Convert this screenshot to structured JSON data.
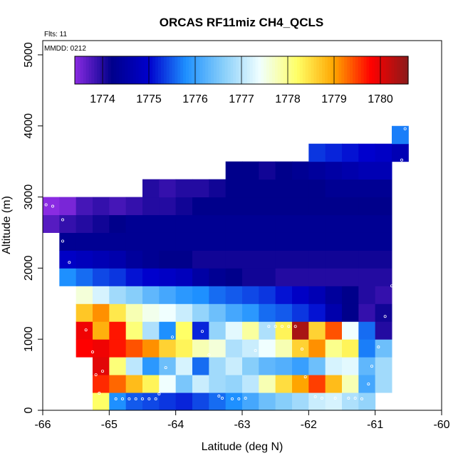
{
  "chart_data": {
    "type": "heatmap",
    "title": "ORCAS RF11miz CH4_QCLS",
    "annotations": {
      "flights": "Flts: 11",
      "date": "MMDD: 0212"
    },
    "xlabel": "Latitude (deg N)",
    "ylabel": "Altitude (m)",
    "xlim": [
      -66,
      -60
    ],
    "ylim": [
      0,
      5200
    ],
    "x_ticks": [
      -66,
      -65,
      -64,
      -63,
      -62,
      -61,
      -60
    ],
    "y_ticks": [
      0,
      1000,
      2000,
      3000,
      4000,
      5000
    ],
    "cell_width_deg": 0.25,
    "cell_height_m": 250,
    "colorbar": {
      "range": [
        1773.4,
        1780.6
      ],
      "ticks": [
        1774,
        1775,
        1776,
        1777,
        1778,
        1779,
        1780
      ],
      "colors": [
        "#8A2BE2",
        "#00008B",
        "#0000CD",
        "#1E90FF",
        "#87CEFA",
        "#F0FFFF",
        "#FFFF66",
        "#FFA500",
        "#FF0000",
        "#8B1A1A"
      ]
    },
    "rows": [
      {
        "alt": 0,
        "x0": -65.25,
        "values": [
          1778.2,
          1775.8,
          1775.5,
          1775.4,
          1775.3,
          1775.2,
          1775.4,
          1775.6,
          1775.8,
          1776.1,
          1776.4,
          1776.6,
          1776.8,
          1777.1,
          1777.2,
          1776.9,
          1776.7
        ]
      },
      {
        "alt": 250,
        "x0": -65.25,
        "values": [
          1779.6,
          1779.3,
          1778.8,
          1778.3,
          1777.4,
          1776.5,
          1777.1,
          1776.8,
          1776.7,
          1777.0,
          1777.8,
          1778.5,
          1779.0,
          1779.5,
          1778.8,
          1777.8,
          1776.1,
          1776.8
        ]
      },
      {
        "alt": 500,
        "x0": -65.25,
        "values": [
          1780.0,
          1778.1,
          1777.0,
          1775.9,
          1776.4,
          1777.2,
          1775.6,
          1776.8,
          1777.1,
          1776.6,
          1776.3,
          1776.2,
          1776.0,
          1776.4,
          1777.2,
          1777.3,
          1776.3,
          1776.8
        ]
      },
      {
        "alt": 750,
        "x0": -65.5,
        "values": [
          1779.8,
          1779.9,
          1779.7,
          1779.4,
          1779.1,
          1778.6,
          1778.3,
          1777.8,
          1777.6,
          1776.9,
          1777.1,
          1777.4,
          1777.8,
          1778.6,
          1779.1,
          1778.0,
          1778.3,
          1775.7,
          1776.4
        ]
      },
      {
        "alt": 1000,
        "x0": -65.5,
        "values": [
          1779.9,
          1778.9,
          1779.7,
          1778.1,
          1776.9,
          1775.8,
          1778.2,
          1775.2,
          1776.7,
          1777.3,
          1777.9,
          1776.9,
          1778.3,
          1780.4,
          1778.6,
          1779.4,
          1777.4,
          1775.6,
          1774.0
        ]
      },
      {
        "alt": 1250,
        "x0": -65.5,
        "values": [
          1778.7,
          1779.1,
          1778.4,
          1777.8,
          1777.5,
          1777.4,
          1777.1,
          1776.7,
          1776.4,
          1776.1,
          1775.9,
          1775.6,
          1775.5,
          1775.3,
          1775.1,
          1774.6,
          1774.2,
          1773.9,
          1774.1
        ]
      },
      {
        "alt": 1500,
        "x0": -65.5,
        "values": [
          1777.6,
          1777.2,
          1776.8,
          1776.6,
          1776.3,
          1776.1,
          1775.9,
          1775.8,
          1775.6,
          1775.5,
          1775.4,
          1775.3,
          1775.1,
          1774.9,
          1774.7,
          1774.4,
          1774.2,
          1774.0,
          1773.9
        ]
      },
      {
        "alt": 1750,
        "x0": -65.75,
        "values": [
          1775.8,
          1775.6,
          1775.4,
          1775.3,
          1775.1,
          1775.0,
          1774.9,
          1774.8,
          1774.5,
          1774.3,
          1774.2,
          1774.1,
          1774.1,
          1774.0,
          1774.0,
          1774.0,
          1774.0,
          1774.0,
          1774.0,
          1774.0
        ]
      },
      {
        "alt": 2000,
        "x0": -65.75,
        "values": [
          1774.9,
          1774.8,
          1774.7,
          1774.6,
          1774.4,
          1774.3,
          1774.2,
          1774.2,
          1774.1,
          1774.1,
          1774.1,
          1774.1,
          1774.1,
          1774.1,
          1774.1,
          1774.1,
          1774.1,
          1774.1,
          1774.1,
          1774.1
        ]
      },
      {
        "alt": 2250,
        "x0": -65.75,
        "values": [
          1774.3,
          1774.3,
          1774.3,
          1774.3,
          1774.3,
          1774.3,
          1774.3,
          1774.3,
          1774.3,
          1774.3,
          1774.3,
          1774.3,
          1774.3,
          1774.3,
          1774.3,
          1774.3,
          1774.3,
          1774.3,
          1774.3,
          1774.3
        ]
      },
      {
        "alt": 2500,
        "x0": -66.0,
        "values": [
          1773.7,
          1773.9,
          1774.0,
          1774.1,
          1774.2,
          1774.3,
          1774.3,
          1774.3,
          1774.3,
          1774.3,
          1774.3,
          1774.3,
          1774.3,
          1774.3,
          1774.3,
          1774.3,
          1774.3,
          1774.3,
          1774.3,
          1774.3,
          1774.3
        ]
      },
      {
        "alt": 2750,
        "x0": -66.0,
        "values": [
          1773.4,
          1773.5,
          1773.8,
          1773.9,
          1773.8,
          1773.9,
          1774.0,
          1774.0,
          1774.1,
          1774.2,
          1774.2,
          1774.2,
          1774.2,
          1774.2,
          1774.2,
          1774.2,
          1774.2,
          1774.2,
          1774.2,
          1774.2,
          1774.2
        ]
      },
      {
        "alt": 3000,
        "x0": -64.5,
        "values": [
          1774.0,
          1773.9,
          1774.0,
          1774.0,
          1774.1,
          1774.2,
          1774.2,
          1774.2,
          1774.2,
          1774.2,
          1774.2,
          1774.3,
          1774.3,
          1774.3,
          1774.3
        ]
      },
      {
        "alt": 3250,
        "x0": -63.25,
        "values": [
          1774.2,
          1774.2,
          1774.1,
          1774.2,
          1774.3,
          1774.4,
          1774.5,
          1774.6,
          1774.7,
          1774.7
        ]
      },
      {
        "alt": 3500,
        "x0": -62.0,
        "values": [
          1775.3,
          1775.2,
          1775.1,
          1775.0,
          1774.9,
          1774.7
        ]
      },
      {
        "alt": 3750,
        "x0": -60.75,
        "values": [
          1775.7
        ]
      }
    ],
    "flight_points": [
      [
        -65.95,
        2890
      ],
      [
        -65.85,
        2870
      ],
      [
        -65.7,
        2680
      ],
      [
        -65.7,
        2380
      ],
      [
        -65.6,
        2080
      ],
      [
        -65.7,
        1440
      ],
      [
        -65.35,
        1130
      ],
      [
        -65.25,
        820
      ],
      [
        -65.2,
        500
      ],
      [
        -65.15,
        240
      ],
      [
        -65.1,
        550
      ],
      [
        -64.9,
        160
      ],
      [
        -64.8,
        160
      ],
      [
        -64.7,
        160
      ],
      [
        -64.6,
        160
      ],
      [
        -64.5,
        160
      ],
      [
        -64.4,
        160
      ],
      [
        -64.3,
        160
      ],
      [
        -64.25,
        230
      ],
      [
        -64.15,
        600
      ],
      [
        -64.05,
        1030
      ],
      [
        -63.6,
        1110
      ],
      [
        -63.5,
        780
      ],
      [
        -63.35,
        200
      ],
      [
        -63.3,
        170
      ],
      [
        -63.15,
        160
      ],
      [
        -63.05,
        160
      ],
      [
        -62.95,
        170
      ],
      [
        -62.8,
        840
      ],
      [
        -62.6,
        1180
      ],
      [
        -62.5,
        1180
      ],
      [
        -62.4,
        1180
      ],
      [
        -62.3,
        1180
      ],
      [
        -62.2,
        1180
      ],
      [
        -62.1,
        860
      ],
      [
        -62.05,
        470
      ],
      [
        -61.9,
        190
      ],
      [
        -61.8,
        170
      ],
      [
        -61.6,
        170
      ],
      [
        -61.4,
        170
      ],
      [
        -61.3,
        170
      ],
      [
        -61.2,
        160
      ],
      [
        -61.1,
        370
      ],
      [
        -61.05,
        620
      ],
      [
        -60.95,
        890
      ],
      [
        -60.85,
        1320
      ],
      [
        -60.75,
        1750
      ],
      [
        -60.6,
        3520
      ],
      [
        -60.55,
        3960
      ]
    ]
  }
}
